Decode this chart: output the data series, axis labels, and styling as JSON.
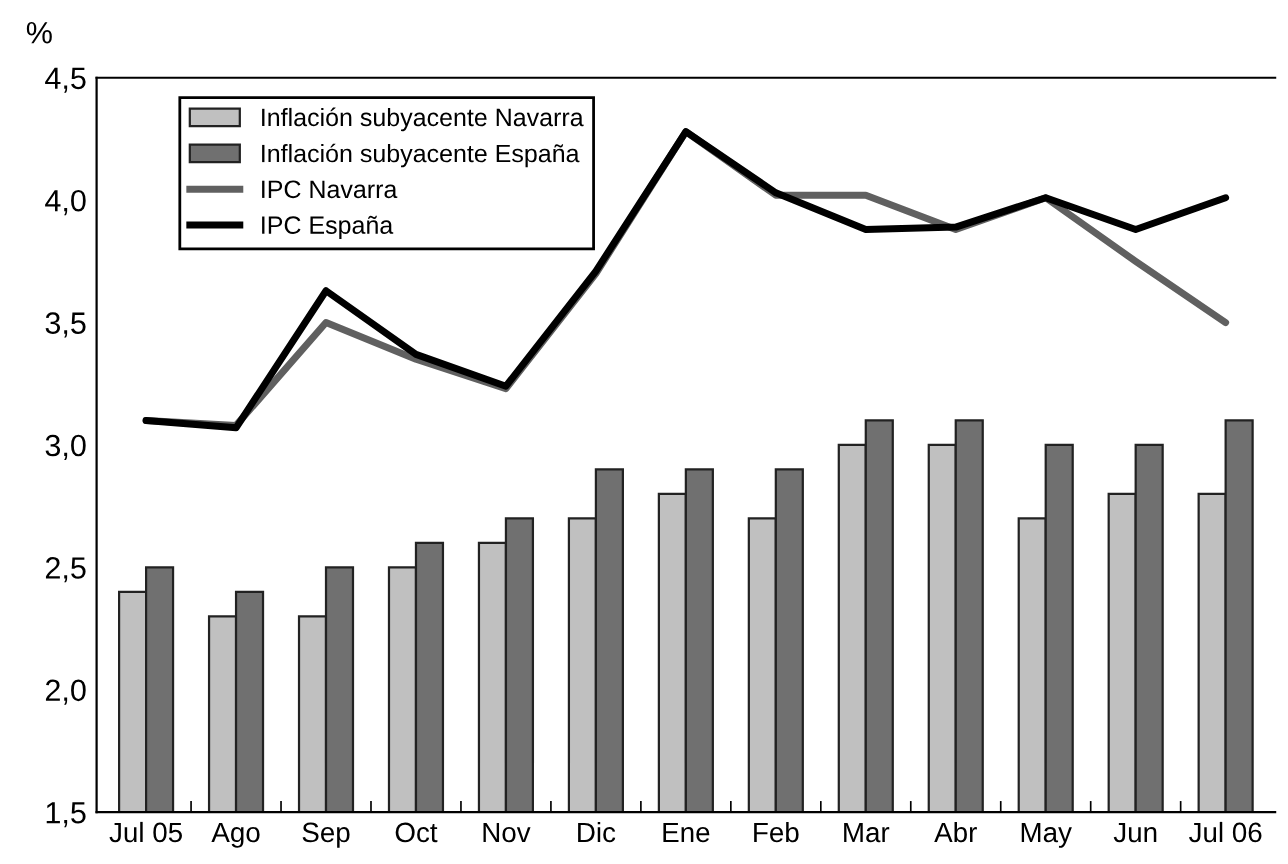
{
  "chart_data": {
    "type": "bar",
    "ylabel": "%",
    "categories": [
      "Jul 05",
      "Ago",
      "Sep",
      "Oct",
      "Nov",
      "Dic",
      "Ene",
      "Feb",
      "Mar",
      "Abr",
      "May",
      "Jun",
      "Jul 06"
    ],
    "series": [
      {
        "name": "Inflación subyacente Navarra",
        "color": "#c0c0c0",
        "values": [
          2.4,
          2.3,
          2.3,
          2.5,
          2.6,
          2.7,
          2.8,
          2.7,
          3.0,
          3.0,
          2.7,
          2.8,
          2.8
        ]
      },
      {
        "name": "Inflación subyacente España",
        "color": "#707070",
        "values": [
          2.5,
          2.4,
          2.5,
          2.6,
          2.7,
          2.9,
          2.9,
          2.9,
          3.1,
          3.1,
          3.0,
          3.0,
          3.1
        ]
      },
      {
        "name": "IPC Navarra",
        "type": "line",
        "color": "#606060",
        "values": [
          3.1,
          3.08,
          3.5,
          3.35,
          3.23,
          3.7,
          4.28,
          4.02,
          4.02,
          3.88,
          4.01,
          3.75,
          3.5
        ]
      },
      {
        "name": "IPC España",
        "type": "line",
        "color": "#000000",
        "values": [
          3.1,
          3.07,
          3.63,
          3.37,
          3.24,
          3.71,
          4.28,
          4.03,
          3.88,
          3.89,
          4.01,
          3.88,
          4.01
        ]
      }
    ],
    "ylim": [
      1.5,
      4.5
    ],
    "yticks": [
      {
        "value": 1.5,
        "label": "1,5"
      },
      {
        "value": 2.0,
        "label": "2,0"
      },
      {
        "value": 2.5,
        "label": "2,5"
      },
      {
        "value": 3.0,
        "label": "3,0"
      },
      {
        "value": 3.5,
        "label": "3,5"
      },
      {
        "value": 4.0,
        "label": "4,0"
      },
      {
        "value": 4.5,
        "label": "4,5"
      }
    ],
    "grid": false,
    "legend": "top left",
    "line_style": "solid",
    "marker": "none"
  }
}
